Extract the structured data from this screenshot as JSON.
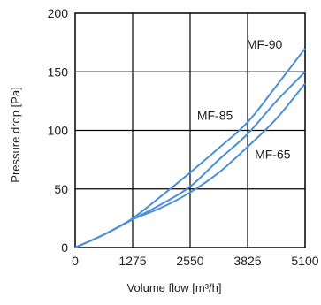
{
  "chart_data": {
    "type": "line",
    "xlabel": "Volume flow [m³/h]",
    "ylabel": "Pressure drop [Pa]",
    "xlim": [
      0,
      5100
    ],
    "ylim": [
      0,
      200
    ],
    "x_ticks": [
      "0",
      "1275",
      "2550",
      "3825",
      "5100"
    ],
    "y_ticks": [
      "0",
      "50",
      "100",
      "150",
      "200"
    ],
    "grid": true,
    "line_color": "#4a90d9",
    "series": [
      {
        "name": "MF-90",
        "x": [
          0,
          638,
          1275,
          1913,
          2550,
          3188,
          3825,
          4463,
          5100
        ],
        "y": [
          0,
          11,
          25,
          44,
          64,
          85,
          107,
          138,
          170
        ]
      },
      {
        "name": "MF-85",
        "x": [
          0,
          638,
          1275,
          1913,
          2550,
          3188,
          3825,
          4463,
          5100
        ],
        "y": [
          0,
          11,
          24,
          37,
          52,
          75,
          97,
          125,
          150
        ]
      },
      {
        "name": "MF-65",
        "x": [
          0,
          638,
          1275,
          1913,
          2550,
          3188,
          3825,
          4463,
          5100
        ],
        "y": [
          0,
          11,
          24,
          34,
          47,
          64,
          86,
          110,
          140
        ]
      }
    ]
  }
}
